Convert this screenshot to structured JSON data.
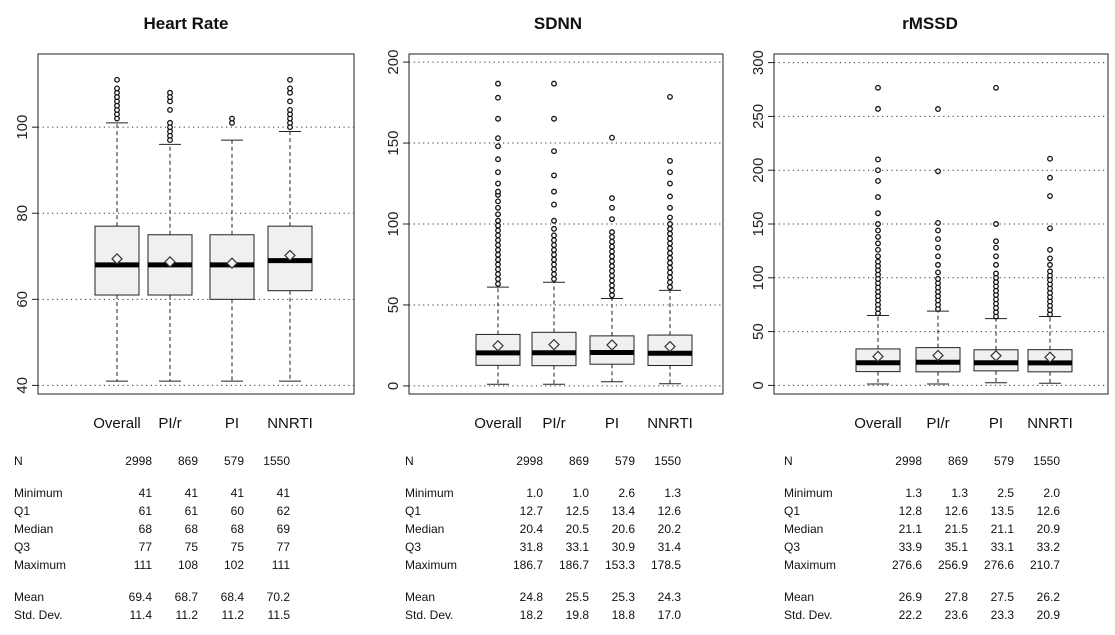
{
  "chart_data": [
    {
      "type": "boxplot",
      "title": "Heart Rate",
      "categories": [
        "Overall",
        "PI/r",
        "PI",
        "NNRTI"
      ],
      "ylim": [
        38,
        117
      ],
      "yticks": [
        "40",
        "60",
        "80",
        "100"
      ],
      "gridlines": [
        40,
        60,
        80,
        100
      ],
      "boxes": [
        {
          "min": 41,
          "q1": 61,
          "median": 68,
          "q3": 77,
          "whisker_high": 101,
          "mean": 69.4,
          "outliers": [
            102,
            103,
            104,
            105,
            106,
            107,
            108,
            109,
            111
          ]
        },
        {
          "min": 41,
          "q1": 61,
          "median": 68,
          "q3": 75,
          "whisker_high": 96,
          "mean": 68.7,
          "outliers": [
            97,
            98,
            99,
            100,
            101,
            104,
            106,
            107,
            108
          ]
        },
        {
          "min": 41,
          "q1": 60,
          "median": 68,
          "q3": 75,
          "whisker_high": 97,
          "mean": 68.4,
          "outliers": [
            101,
            102
          ]
        },
        {
          "min": 41,
          "q1": 62,
          "median": 69,
          "q3": 77,
          "whisker_high": 99,
          "mean": 70.2,
          "outliers": [
            100,
            101,
            102,
            103,
            104,
            106,
            108,
            109,
            111
          ]
        }
      ],
      "stats": {
        "rows": [
          {
            "label": "N",
            "values": [
              "2998",
              "869",
              "579",
              "1550"
            ]
          },
          {
            "gap": true
          },
          {
            "label": "Minimum",
            "values": [
              "41",
              "41",
              "41",
              "41"
            ]
          },
          {
            "label": "Q1",
            "values": [
              "61",
              "61",
              "60",
              "62"
            ]
          },
          {
            "label": "Median",
            "values": [
              "68",
              "68",
              "68",
              "69"
            ]
          },
          {
            "label": "Q3",
            "values": [
              "77",
              "75",
              "75",
              "77"
            ]
          },
          {
            "label": "Maximum",
            "values": [
              "111",
              "108",
              "102",
              "111"
            ]
          },
          {
            "gap": true
          },
          {
            "label": "Mean",
            "values": [
              "69.4",
              "68.7",
              "68.4",
              "70.2"
            ]
          },
          {
            "label": "Std. Dev.",
            "values": [
              "11.4",
              "11.2",
              "11.2",
              "11.5"
            ]
          }
        ]
      }
    },
    {
      "type": "boxplot",
      "title": "SDNN",
      "categories": [
        "Overall",
        "PI/r",
        "PI",
        "NNRTI"
      ],
      "ylim": [
        -5,
        205
      ],
      "yticks": [
        "0",
        "50",
        "100",
        "150",
        "200"
      ],
      "gridlines": [
        0,
        50,
        100,
        150,
        200
      ],
      "boxes": [
        {
          "min": 1.0,
          "q1": 12.7,
          "median": 20.4,
          "q3": 31.8,
          "whisker_high": 61,
          "mean": 24.8,
          "outliers": [
            63,
            66,
            69,
            72,
            75,
            78,
            81,
            84,
            87,
            90,
            93,
            96,
            99,
            102,
            106,
            110,
            114,
            118,
            120,
            125,
            132,
            140,
            148,
            153,
            165,
            178,
            186.7
          ]
        },
        {
          "min": 1.0,
          "q1": 12.5,
          "median": 20.5,
          "q3": 33.1,
          "whisker_high": 64,
          "mean": 25.5,
          "outliers": [
            66,
            69,
            72,
            75,
            78,
            81,
            84,
            87,
            90,
            93,
            97,
            102,
            112,
            120,
            130,
            145,
            165,
            186.7
          ]
        },
        {
          "min": 2.6,
          "q1": 13.4,
          "median": 20.6,
          "q3": 30.9,
          "whisker_high": 54,
          "mean": 25.3,
          "outliers": [
            56,
            59,
            62,
            65,
            68,
            71,
            74,
            77,
            80,
            83,
            86,
            89,
            92,
            95,
            103,
            110,
            116,
            153.3
          ]
        },
        {
          "min": 1.3,
          "q1": 12.6,
          "median": 20.2,
          "q3": 31.4,
          "whisker_high": 59,
          "mean": 24.3,
          "outliers": [
            61,
            64,
            67,
            70,
            73,
            76,
            79,
            82,
            85,
            88,
            91,
            94,
            97,
            100,
            104,
            110,
            117,
            125,
            132,
            139,
            178.5
          ]
        }
      ],
      "stats": {
        "rows": [
          {
            "label": "N",
            "values": [
              "2998",
              "869",
              "579",
              "1550"
            ]
          },
          {
            "gap": true
          },
          {
            "label": "Minimum",
            "values": [
              "1.0",
              "1.0",
              "2.6",
              "1.3"
            ]
          },
          {
            "label": "Q1",
            "values": [
              "12.7",
              "12.5",
              "13.4",
              "12.6"
            ]
          },
          {
            "label": "Median",
            "values": [
              "20.4",
              "20.5",
              "20.6",
              "20.2"
            ]
          },
          {
            "label": "Q3",
            "values": [
              "31.8",
              "33.1",
              "30.9",
              "31.4"
            ]
          },
          {
            "label": "Maximum",
            "values": [
              "186.7",
              "186.7",
              "153.3",
              "178.5"
            ]
          },
          {
            "gap": true
          },
          {
            "label": "Mean",
            "values": [
              "24.8",
              "25.5",
              "25.3",
              "24.3"
            ]
          },
          {
            "label": "Std. Dev.",
            "values": [
              "18.2",
              "19.8",
              "18.8",
              "17.0"
            ]
          }
        ]
      }
    },
    {
      "type": "boxplot",
      "title": "rMSSD",
      "categories": [
        "Overall",
        "PI/r",
        "PI",
        "NNRTI"
      ],
      "ylim": [
        -8,
        308
      ],
      "yticks": [
        "0",
        "50",
        "100",
        "150",
        "200",
        "250",
        "300"
      ],
      "gridlines": [
        0,
        50,
        100,
        150,
        200,
        250,
        300
      ],
      "boxes": [
        {
          "min": 1.3,
          "q1": 12.8,
          "median": 21.1,
          "q3": 33.9,
          "whisker_high": 65,
          "mean": 26.9,
          "outliers": [
            67,
            71,
            75,
            79,
            83,
            87,
            91,
            95,
            99,
            103,
            107,
            111,
            115,
            120,
            126,
            132,
            138,
            144,
            150,
            160,
            175,
            190,
            200,
            210,
            257,
            276.6
          ]
        },
        {
          "min": 1.3,
          "q1": 12.6,
          "median": 21.5,
          "q3": 35.1,
          "whisker_high": 69,
          "mean": 27.8,
          "outliers": [
            71,
            75,
            79,
            83,
            87,
            91,
            95,
            99,
            105,
            112,
            120,
            128,
            136,
            144,
            151,
            199,
            256.9
          ]
        },
        {
          "min": 2.5,
          "q1": 13.5,
          "median": 21.1,
          "q3": 33.1,
          "whisker_high": 62,
          "mean": 27.5,
          "outliers": [
            64,
            68,
            72,
            76,
            80,
            84,
            88,
            92,
            96,
            100,
            104,
            112,
            120,
            128,
            134,
            150,
            276.6
          ]
        },
        {
          "min": 2.0,
          "q1": 12.6,
          "median": 20.9,
          "q3": 33.2,
          "whisker_high": 64,
          "mean": 26.2,
          "outliers": [
            66,
            70,
            74,
            78,
            82,
            86,
            90,
            94,
            98,
            102,
            106,
            112,
            118,
            126,
            146,
            176,
            193,
            210.7
          ]
        }
      ],
      "stats": {
        "rows": [
          {
            "label": "N",
            "values": [
              "2998",
              "869",
              "579",
              "1550"
            ]
          },
          {
            "gap": true
          },
          {
            "label": "Minimum",
            "values": [
              "1.3",
              "1.3",
              "2.5",
              "2.0"
            ]
          },
          {
            "label": "Q1",
            "values": [
              "12.8",
              "12.6",
              "13.5",
              "12.6"
            ]
          },
          {
            "label": "Median",
            "values": [
              "21.1",
              "21.5",
              "21.1",
              "20.9"
            ]
          },
          {
            "label": "Q3",
            "values": [
              "33.9",
              "35.1",
              "33.1",
              "33.2"
            ]
          },
          {
            "label": "Maximum",
            "values": [
              "276.6",
              "256.9",
              "276.6",
              "210.7"
            ]
          },
          {
            "gap": true
          },
          {
            "label": "Mean",
            "values": [
              "26.9",
              "27.8",
              "27.5",
              "26.2"
            ]
          },
          {
            "label": "Std. Dev.",
            "values": [
              "22.2",
              "23.6",
              "23.3",
              "20.9"
            ]
          }
        ]
      }
    }
  ]
}
